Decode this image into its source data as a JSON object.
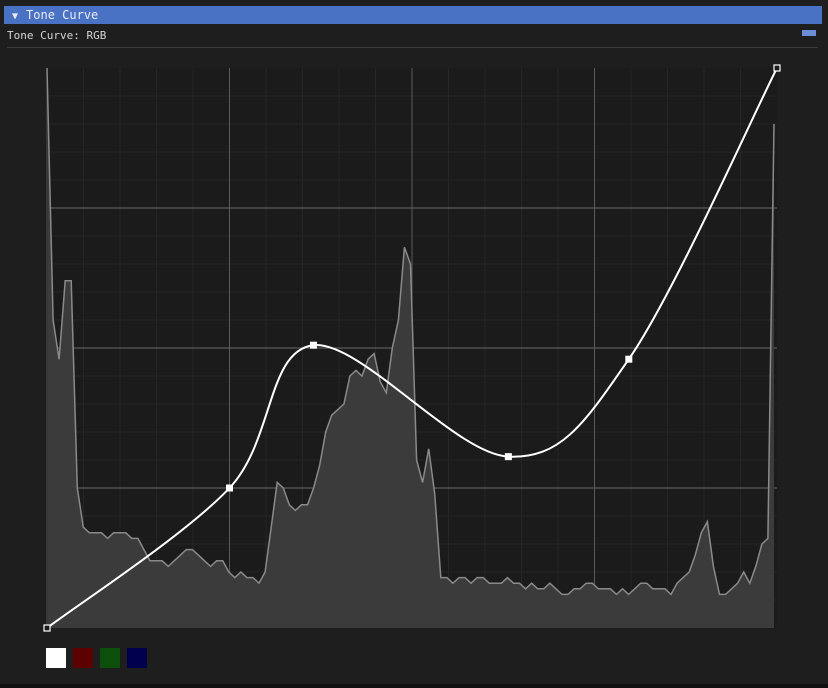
{
  "panel": {
    "title": "Tone Curve",
    "collapse_glyph": "▼",
    "subtitle": "Tone Curve: RGB",
    "accent_color": "#4a72c4"
  },
  "curve": {
    "channel": "RGB",
    "control_points": [
      {
        "input": 0.0,
        "output": 0.0
      },
      {
        "input": 0.25,
        "output": 0.25
      },
      {
        "input": 0.365,
        "output": 0.505
      },
      {
        "input": 0.632,
        "output": 0.306
      },
      {
        "input": 0.797,
        "output": 0.48
      },
      {
        "input": 1.0,
        "output": 1.0
      }
    ],
    "histogram": [
      1.0,
      0.55,
      0.48,
      0.62,
      0.62,
      0.25,
      0.18,
      0.17,
      0.17,
      0.17,
      0.16,
      0.17,
      0.17,
      0.17,
      0.16,
      0.16,
      0.14,
      0.12,
      0.12,
      0.12,
      0.11,
      0.12,
      0.13,
      0.14,
      0.14,
      0.13,
      0.12,
      0.11,
      0.12,
      0.12,
      0.1,
      0.09,
      0.1,
      0.09,
      0.09,
      0.08,
      0.1,
      0.18,
      0.26,
      0.25,
      0.22,
      0.21,
      0.22,
      0.22,
      0.25,
      0.29,
      0.35,
      0.38,
      0.39,
      0.4,
      0.45,
      0.46,
      0.45,
      0.48,
      0.49,
      0.44,
      0.42,
      0.5,
      0.55,
      0.68,
      0.65,
      0.3,
      0.26,
      0.32,
      0.24,
      0.09,
      0.09,
      0.08,
      0.09,
      0.09,
      0.08,
      0.09,
      0.09,
      0.08,
      0.08,
      0.08,
      0.09,
      0.08,
      0.08,
      0.07,
      0.08,
      0.07,
      0.07,
      0.08,
      0.07,
      0.06,
      0.06,
      0.07,
      0.07,
      0.08,
      0.08,
      0.07,
      0.07,
      0.07,
      0.06,
      0.07,
      0.06,
      0.07,
      0.08,
      0.08,
      0.07,
      0.07,
      0.07,
      0.06,
      0.08,
      0.09,
      0.1,
      0.13,
      0.17,
      0.19,
      0.11,
      0.06,
      0.06,
      0.07,
      0.08,
      0.1,
      0.08,
      0.11,
      0.15,
      0.16,
      0.9
    ]
  },
  "channels": [
    {
      "name": "rgb-channel-swatch",
      "color": "#ffffff",
      "selected": true
    },
    {
      "name": "red-channel-swatch",
      "color": "#5c0000",
      "selected": false
    },
    {
      "name": "green-channel-swatch",
      "color": "#0b4f0b",
      "selected": false
    },
    {
      "name": "blue-channel-swatch",
      "color": "#00004e",
      "selected": false
    }
  ]
}
